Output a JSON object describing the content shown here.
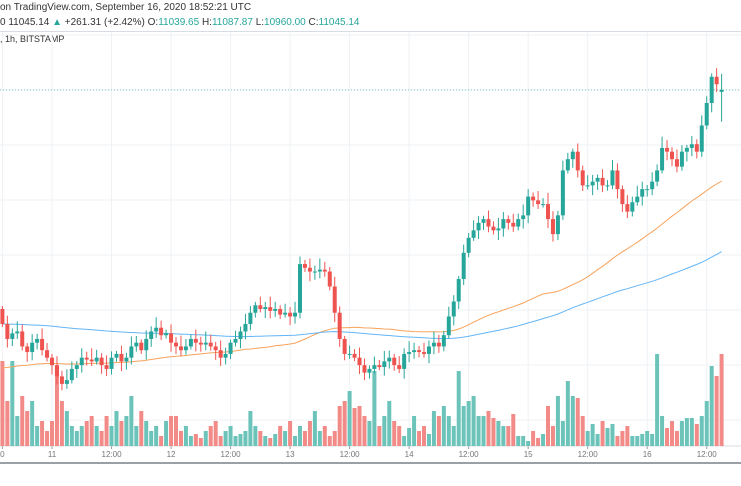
{
  "header": {
    "source": "on TradingView.com, September 16, 2020 18:52:21 UTC",
    "price_prefix": "0",
    "last": "11045.14",
    "change": "+261.31 (+2.42%)",
    "o_label": "O:",
    "o": "11039.65",
    "h_label": "H:",
    "h": "11087.87",
    "l_label": "L:",
    "l": "10960.00",
    "c_label": "C:",
    "c": "11045.14",
    "symbol_line": ", 1h, BITSTAMP",
    "up_icon": "triangle-up-icon"
  },
  "colors": {
    "up": "#26a69a",
    "down": "#ef5350",
    "vol_up": "#6cc3b9",
    "vol_down": "#f28b87",
    "ma_fast": "#f7a35c",
    "ma_slow": "#64b5f6"
  },
  "chart_data": {
    "type": "candlestick",
    "interval": "1h",
    "exchange": "BITSTAMP",
    "x_ticks": [
      {
        "label": "0",
        "index": 0
      },
      {
        "label": "11",
        "index": 10
      },
      {
        "label": "12:00",
        "index": 22
      },
      {
        "label": "12",
        "index": 34
      },
      {
        "label": "12:00",
        "index": 46
      },
      {
        "label": "13",
        "index": 58
      },
      {
        "label": "12:00",
        "index": 70
      },
      {
        "label": "14",
        "index": 82
      },
      {
        "label": "12:00",
        "index": 94
      },
      {
        "label": "15",
        "index": 106
      },
      {
        "label": "12:00",
        "index": 118
      },
      {
        "label": "16",
        "index": 130
      },
      {
        "label": "12:00",
        "index": 142
      }
    ],
    "last_open": 11039.65,
    "last_high": 11087.87,
    "last_low": 10960.0,
    "last_close": 11045.14,
    "first_open": 10460,
    "closes": [
      10420,
      10380,
      10395,
      10400,
      10360,
      10345,
      10370,
      10380,
      10350,
      10330,
      10310,
      10280,
      10260,
      10270,
      10300,
      10310,
      10330,
      10325,
      10320,
      10330,
      10310,
      10300,
      10330,
      10340,
      10320,
      10330,
      10360,
      10370,
      10350,
      10380,
      10400,
      10410,
      10390,
      10395,
      10370,
      10360,
      10350,
      10360,
      10380,
      10370,
      10365,
      10370,
      10360,
      10350,
      10330,
      10340,
      10370,
      10380,
      10400,
      10420,
      10450,
      10470,
      10460,
      10465,
      10455,
      10460,
      10445,
      10450,
      10440,
      10450,
      10580,
      10570,
      10560,
      10560,
      10565,
      10560,
      10520,
      10450,
      10380,
      10340,
      10340,
      10330,
      10310,
      10290,
      10300,
      10310,
      10305,
      10320,
      10330,
      10310,
      10300,
      10340,
      10345,
      10350,
      10345,
      10340,
      10360,
      10370,
      10360,
      10390,
      10440,
      10480,
      10540,
      10610,
      10650,
      10670,
      10690,
      10700,
      10680,
      10670,
      10675,
      10700,
      10690,
      10680,
      10700,
      10710,
      10760,
      10750,
      10740,
      10740,
      10700,
      10660,
      10710,
      10830,
      10860,
      10880,
      10830,
      10790,
      10790,
      10800,
      10810,
      10790,
      10790,
      10830,
      10780,
      10740,
      10720,
      10745,
      10760,
      10780,
      10780,
      10800,
      10830,
      10890,
      10880,
      10860,
      10840,
      10880,
      10890,
      10900,
      10880,
      10950,
      11010,
      11080,
      11060,
      11045.14
    ],
    "volumes_relative": [
      85,
      45,
      85,
      30,
      50,
      35,
      45,
      20,
      25,
      15,
      25,
      80,
      45,
      35,
      20,
      15,
      20,
      25,
      30,
      20,
      15,
      30,
      20,
      35,
      25,
      30,
      50,
      20,
      35,
      25,
      15,
      20,
      10,
      25,
      30,
      30,
      15,
      20,
      10,
      12,
      8,
      15,
      20,
      25,
      10,
      15,
      20,
      10,
      12,
      15,
      35,
      20,
      15,
      10,
      8,
      12,
      20,
      15,
      25,
      10,
      20,
      15,
      25,
      35,
      15,
      20,
      10,
      15,
      40,
      45,
      55,
      38,
      40,
      30,
      25,
      75,
      20,
      30,
      45,
      25,
      20,
      10,
      18,
      30,
      15,
      20,
      12,
      35,
      30,
      40,
      30,
      20,
      75,
      40,
      45,
      50,
      30,
      30,
      35,
      28,
      25,
      20,
      20,
      32,
      10,
      10,
      5,
      15,
      8,
      12,
      40,
      20,
      50,
      25,
      65,
      50,
      48,
      30,
      15,
      22,
      12,
      25,
      18,
      22,
      10,
      15,
      20,
      10,
      10,
      12,
      15,
      12,
      92,
      30,
      18,
      25,
      15,
      25,
      28,
      28,
      22,
      30,
      45,
      80,
      70,
      92
    ],
    "moving_averages": [
      {
        "name": "MA fast",
        "period": 50
      },
      {
        "name": "MA slow",
        "period": 100
      }
    ],
    "grid": true
  }
}
